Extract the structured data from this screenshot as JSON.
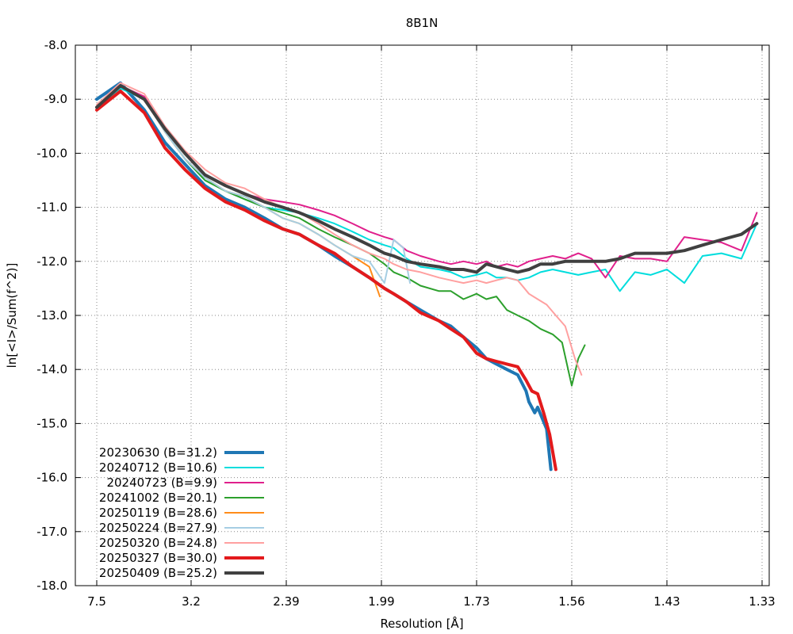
{
  "chart_data": {
    "type": "line",
    "title": "8B1N",
    "xlabel": "Resolution [Å]",
    "ylabel": "ln[<I>/Sum(f^2)]",
    "ylim": [
      -18.0,
      -8.0
    ],
    "x_scale": "reciprocal-squared",
    "xlim": [
      7.5,
      1.33
    ],
    "x_ticks": [
      7.5,
      3.2,
      2.39,
      1.99,
      1.73,
      1.56,
      1.43,
      1.33
    ],
    "x_tick_labels": [
      "7.5",
      "3.2",
      "2.39",
      "1.99",
      "1.73",
      "1.56",
      "1.43",
      "1.33"
    ],
    "y_ticks": [
      -8,
      -9,
      -10,
      -11,
      -12,
      -13,
      -14,
      -15,
      -16,
      -17,
      -18
    ],
    "y_tick_labels": [
      "-8.0",
      "-9.0",
      "-10.0",
      "-11.0",
      "-12.0",
      "-13.0",
      "-14.0",
      "-15.0",
      "-16.0",
      "-17.0",
      "-18.0"
    ],
    "grid": true,
    "legend_position": "bottom-left",
    "series": [
      {
        "name": "20230630 (B=31.2)",
        "color": "#1f77b4",
        "width": 4,
        "x": [
          7.5,
          5.14,
          4.15,
          3.64,
          3.29,
          3.03,
          2.82,
          2.66,
          2.52,
          2.41,
          2.32,
          2.23,
          2.16,
          2.09,
          2.03,
          1.98,
          1.95,
          1.91,
          1.87,
          1.82,
          1.79,
          1.76,
          1.73,
          1.71,
          1.69,
          1.67,
          1.65,
          1.635,
          1.63,
          1.62,
          1.615,
          1.6,
          1.593
        ],
        "y": [
          -9.0,
          -8.7,
          -9.2,
          -9.8,
          -10.2,
          -10.6,
          -10.85,
          -11.0,
          -11.2,
          -11.4,
          -11.5,
          -11.7,
          -11.9,
          -12.1,
          -12.3,
          -12.5,
          -12.6,
          -12.75,
          -12.9,
          -13.1,
          -13.2,
          -13.4,
          -13.6,
          -13.8,
          -13.9,
          -14.0,
          -14.1,
          -14.4,
          -14.6,
          -14.8,
          -14.7,
          -15.1,
          -15.85
        ]
      },
      {
        "name": "20240712 (B=10.6)",
        "color": "#00dddd",
        "width": 2,
        "x": [
          7.5,
          5.14,
          4.15,
          3.64,
          3.29,
          3.03,
          2.82,
          2.66,
          2.52,
          2.41,
          2.32,
          2.23,
          2.16,
          2.09,
          2.03,
          1.98,
          1.95,
          1.91,
          1.87,
          1.82,
          1.79,
          1.76,
          1.73,
          1.71,
          1.69,
          1.67,
          1.65,
          1.63,
          1.61,
          1.59,
          1.57,
          1.55,
          1.53,
          1.51,
          1.49,
          1.47,
          1.45,
          1.43,
          1.41,
          1.39,
          1.37,
          1.35,
          1.335
        ],
        "y": [
          -9.2,
          -8.8,
          -9.0,
          -9.6,
          -10.1,
          -10.5,
          -10.7,
          -10.85,
          -11.0,
          -11.05,
          -11.1,
          -11.2,
          -11.3,
          -11.45,
          -11.6,
          -11.7,
          -11.75,
          -11.95,
          -12.1,
          -12.15,
          -12.2,
          -12.3,
          -12.25,
          -12.2,
          -12.3,
          -12.3,
          -12.35,
          -12.3,
          -12.2,
          -12.15,
          -12.2,
          -12.25,
          -12.2,
          -12.15,
          -12.55,
          -12.2,
          -12.25,
          -12.15,
          -12.4,
          -11.9,
          -11.85,
          -11.95,
          -11.3
        ]
      },
      {
        "name": "20240723 (B=9.9)",
        "color": "#e0208c",
        "width": 2,
        "x": [
          7.5,
          5.14,
          4.15,
          3.64,
          3.29,
          3.03,
          2.82,
          2.66,
          2.52,
          2.41,
          2.32,
          2.23,
          2.16,
          2.09,
          2.03,
          1.98,
          1.95,
          1.91,
          1.87,
          1.82,
          1.79,
          1.76,
          1.73,
          1.71,
          1.69,
          1.67,
          1.65,
          1.63,
          1.61,
          1.59,
          1.57,
          1.55,
          1.53,
          1.51,
          1.49,
          1.47,
          1.45,
          1.43,
          1.41,
          1.39,
          1.37,
          1.35,
          1.335
        ],
        "y": [
          -9.15,
          -8.75,
          -8.95,
          -9.55,
          -10.0,
          -10.4,
          -10.6,
          -10.75,
          -10.85,
          -10.9,
          -10.95,
          -11.05,
          -11.15,
          -11.3,
          -11.45,
          -11.55,
          -11.6,
          -11.8,
          -11.9,
          -12.0,
          -12.05,
          -12.0,
          -12.05,
          -12.0,
          -12.1,
          -12.05,
          -12.1,
          -12.0,
          -11.95,
          -11.9,
          -11.95,
          -11.85,
          -11.95,
          -12.3,
          -11.9,
          -11.95,
          -11.95,
          -12.0,
          -11.55,
          -11.6,
          -11.65,
          -11.8,
          -11.1
        ]
      },
      {
        "name": "20241002 (B=20.1)",
        "color": "#2ca02c",
        "width": 2,
        "x": [
          7.5,
          5.14,
          4.15,
          3.64,
          3.29,
          3.03,
          2.82,
          2.66,
          2.52,
          2.41,
          2.32,
          2.23,
          2.16,
          2.09,
          2.03,
          1.98,
          1.95,
          1.91,
          1.87,
          1.82,
          1.79,
          1.76,
          1.73,
          1.71,
          1.69,
          1.67,
          1.65,
          1.63,
          1.61,
          1.59,
          1.575,
          1.56,
          1.55,
          1.54
        ],
        "y": [
          -9.15,
          -8.75,
          -9.0,
          -9.6,
          -10.1,
          -10.5,
          -10.7,
          -10.85,
          -11.0,
          -11.1,
          -11.2,
          -11.4,
          -11.55,
          -11.7,
          -11.85,
          -12.05,
          -12.2,
          -12.3,
          -12.45,
          -12.55,
          -12.55,
          -12.7,
          -12.6,
          -12.7,
          -12.65,
          -12.9,
          -13.0,
          -13.1,
          -13.25,
          -13.35,
          -13.5,
          -14.3,
          -13.8,
          -13.55
        ]
      },
      {
        "name": "20250119 (B=28.6)",
        "color": "#ff8c1a",
        "width": 2,
        "x": [
          7.5,
          5.14,
          4.15,
          3.64,
          3.29,
          3.03,
          2.82,
          2.66,
          2.52,
          2.41,
          2.32,
          2.23,
          2.16,
          2.09,
          2.03,
          1.995
        ],
        "y": [
          -9.15,
          -8.75,
          -9.0,
          -9.6,
          -10.1,
          -10.45,
          -10.7,
          -10.8,
          -11.0,
          -11.2,
          -11.3,
          -11.5,
          -11.7,
          -11.9,
          -12.1,
          -12.65
        ]
      },
      {
        "name": "20250224 (B=27.9)",
        "color": "#a6cee3",
        "width": 2,
        "x": [
          7.5,
          5.14,
          4.15,
          3.64,
          3.29,
          3.03,
          2.82,
          2.66,
          2.52,
          2.41,
          2.32,
          2.23,
          2.16,
          2.09,
          2.03,
          1.98,
          1.95,
          1.92,
          1.9
        ],
        "y": [
          -9.15,
          -8.75,
          -9.0,
          -9.6,
          -10.1,
          -10.45,
          -10.7,
          -10.8,
          -11.0,
          -11.2,
          -11.3,
          -11.5,
          -11.7,
          -11.9,
          -12.0,
          -12.4,
          -11.6,
          -11.75,
          -12.4
        ]
      },
      {
        "name": "20250320 (B=24.8)",
        "color": "#ffa0a0",
        "width": 2,
        "x": [
          7.5,
          5.14,
          4.15,
          3.64,
          3.29,
          3.03,
          2.82,
          2.66,
          2.52,
          2.41,
          2.32,
          2.23,
          2.16,
          2.09,
          2.03,
          1.98,
          1.95,
          1.91,
          1.87,
          1.82,
          1.79,
          1.76,
          1.73,
          1.71,
          1.69,
          1.67,
          1.65,
          1.63,
          1.615,
          1.6,
          1.585,
          1.57,
          1.555,
          1.545
        ],
        "y": [
          -9.1,
          -8.7,
          -8.9,
          -9.5,
          -9.95,
          -10.3,
          -10.55,
          -10.65,
          -10.85,
          -11.0,
          -11.1,
          -11.3,
          -11.5,
          -11.7,
          -11.85,
          -11.95,
          -12.05,
          -12.15,
          -12.2,
          -12.3,
          -12.35,
          -12.4,
          -12.35,
          -12.4,
          -12.35,
          -12.3,
          -12.35,
          -12.6,
          -12.7,
          -12.8,
          -13.0,
          -13.2,
          -13.8,
          -14.1
        ]
      },
      {
        "name": "20250327 (B=30.0)",
        "color": "#e31a1c",
        "width": 4,
        "x": [
          7.5,
          5.14,
          4.15,
          3.64,
          3.29,
          3.03,
          2.82,
          2.66,
          2.52,
          2.41,
          2.32,
          2.23,
          2.16,
          2.09,
          2.03,
          1.98,
          1.95,
          1.91,
          1.87,
          1.82,
          1.79,
          1.76,
          1.73,
          1.71,
          1.69,
          1.67,
          1.65,
          1.635,
          1.625,
          1.615,
          1.605,
          1.595,
          1.585
        ],
        "y": [
          -9.2,
          -8.85,
          -9.25,
          -9.9,
          -10.3,
          -10.65,
          -10.9,
          -11.05,
          -11.25,
          -11.4,
          -11.5,
          -11.7,
          -11.85,
          -12.1,
          -12.3,
          -12.5,
          -12.6,
          -12.75,
          -12.95,
          -13.1,
          -13.25,
          -13.4,
          -13.7,
          -13.8,
          -13.85,
          -13.9,
          -13.95,
          -14.2,
          -14.4,
          -14.45,
          -14.8,
          -15.2,
          -15.85
        ]
      },
      {
        "name": "20250409 (B=25.2)",
        "color": "#404040",
        "width": 4,
        "x": [
          7.5,
          5.14,
          4.15,
          3.64,
          3.29,
          3.03,
          2.82,
          2.66,
          2.52,
          2.41,
          2.32,
          2.23,
          2.16,
          2.09,
          2.03,
          1.98,
          1.95,
          1.91,
          1.87,
          1.82,
          1.79,
          1.76,
          1.73,
          1.71,
          1.69,
          1.67,
          1.65,
          1.63,
          1.61,
          1.59,
          1.57,
          1.55,
          1.53,
          1.51,
          1.49,
          1.47,
          1.45,
          1.43,
          1.41,
          1.39,
          1.37,
          1.35,
          1.335
        ],
        "y": [
          -9.15,
          -8.75,
          -9.0,
          -9.55,
          -10.0,
          -10.4,
          -10.6,
          -10.75,
          -10.9,
          -11.0,
          -11.1,
          -11.25,
          -11.4,
          -11.55,
          -11.7,
          -11.85,
          -11.9,
          -12.0,
          -12.05,
          -12.1,
          -12.15,
          -12.15,
          -12.2,
          -12.05,
          -12.1,
          -12.15,
          -12.2,
          -12.15,
          -12.05,
          -12.05,
          -12.0,
          -12.0,
          -12.0,
          -12.0,
          -11.95,
          -11.85,
          -11.85,
          -11.85,
          -11.8,
          -11.7,
          -11.6,
          -11.5,
          -11.3
        ]
      }
    ]
  }
}
